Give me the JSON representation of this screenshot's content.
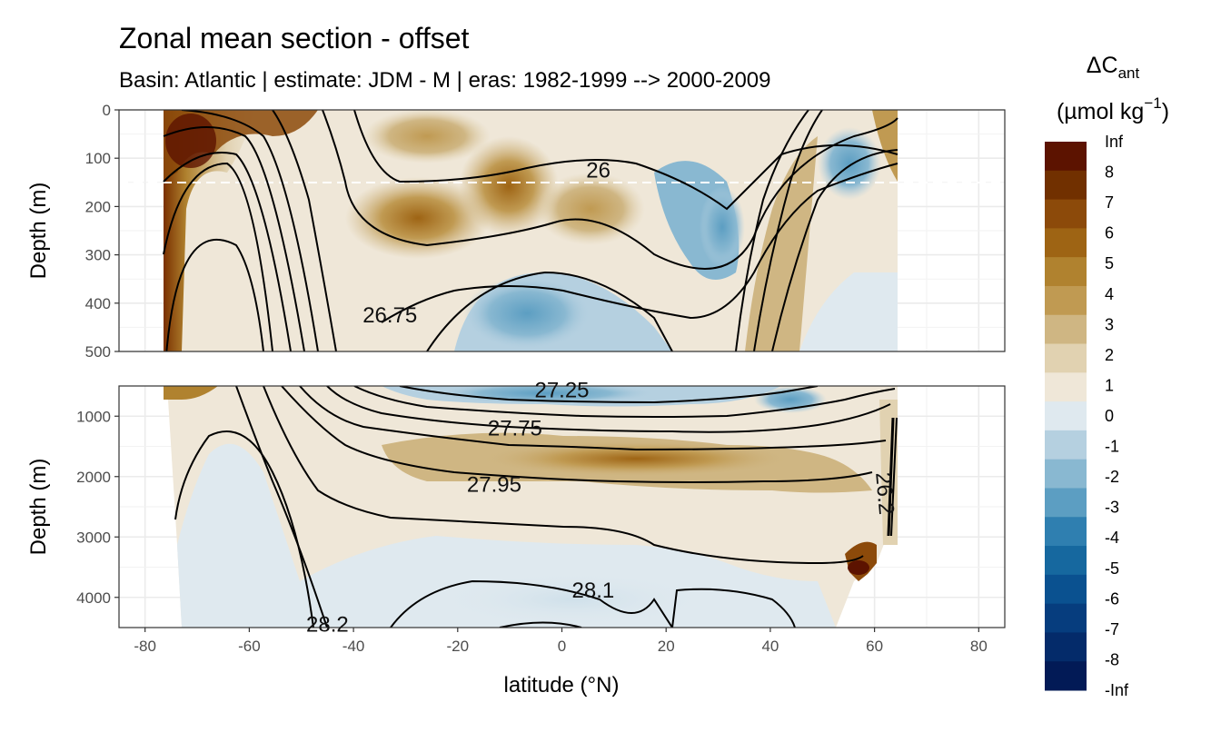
{
  "title": "Zonal mean section - offset",
  "subtitle": "Basin: Atlantic | estimate: JDM - M | eras: 1982-1999 --> 2000-2009",
  "chart_data": {
    "type": "heatmap",
    "title": "Zonal mean section - offset",
    "subtitle": "Basin: Atlantic | estimate: JDM - M | eras: 1982-1999 --> 2000-2009",
    "xlabel": "latitude (°N)",
    "ylabel": "Depth (m)",
    "xlim": [
      -85,
      85
    ],
    "x_ticks": [
      -80,
      -60,
      -40,
      -20,
      0,
      20,
      40,
      60,
      80
    ],
    "x_tick_labels": [
      "-80",
      "-60",
      "-40",
      "-20",
      "0",
      "20",
      "40",
      "60",
      "80"
    ],
    "panels": [
      {
        "name": "upper",
        "ylim": [
          0,
          500
        ],
        "y_ticks": [
          0,
          100,
          200,
          300,
          400,
          500
        ],
        "y_tick_labels": [
          "0",
          "100",
          "200",
          "300",
          "400",
          "500"
        ],
        "reference_depth": 150
      },
      {
        "name": "lower",
        "ylim": [
          500,
          4500
        ],
        "y_ticks": [
          1000,
          2000,
          3000,
          4000
        ],
        "y_tick_labels": [
          "1000",
          "2000",
          "3000",
          "4000"
        ]
      }
    ],
    "data_extent": {
      "lat_min": -77,
      "lat_max": 65
    },
    "legend": {
      "title": "ΔC",
      "title_subscript": "ant",
      "unit": "(µmol kg",
      "unit_superscript": "−1",
      "unit_close": ")",
      "placement": "right",
      "breaks": [
        "Inf",
        "8",
        "7",
        "6",
        "5",
        "4",
        "3",
        "2",
        "1",
        "0",
        "-1",
        "-2",
        "-3",
        "-4",
        "-5",
        "-6",
        "-7",
        "-8",
        "-Inf"
      ],
      "colors": [
        "#5c1300",
        "#713000",
        "#8c4a0a",
        "#9e6414",
        "#b0822f",
        "#c09a52",
        "#cfb683",
        "#e1d2b1",
        "#efe7d8",
        "#dfe9ef",
        "#b5d0e0",
        "#89b8d1",
        "#5c9ec2",
        "#2f7fb0",
        "#16689f",
        "#0a5190",
        "#063d7e",
        "#042b6a",
        "#021a56"
      ]
    },
    "contour_labels": [
      {
        "text": "26",
        "lat": 7,
        "depth": 125
      },
      {
        "text": "26.75",
        "lat": -33,
        "depth": 425
      },
      {
        "text": "27.25",
        "lat": 0,
        "depth": 570
      },
      {
        "text": "27.75",
        "lat": -9,
        "depth": 1200
      },
      {
        "text": "27.95",
        "lat": -13,
        "depth": 2130
      },
      {
        "text": "28.1",
        "lat": 6,
        "depth": 3880
      },
      {
        "text": "28.2",
        "lat": -45,
        "depth": 4450
      },
      {
        "text": "26.2",
        "lat": 62,
        "depth": 2280
      }
    ],
    "grid": true,
    "facets": 2
  }
}
